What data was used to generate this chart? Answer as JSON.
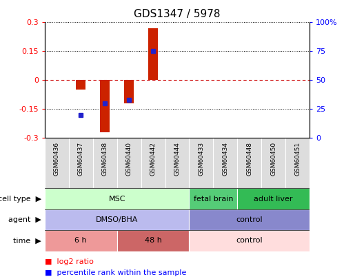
{
  "title": "GDS1347 / 5978",
  "samples": [
    "GSM60436",
    "GSM60437",
    "GSM60438",
    "GSM60440",
    "GSM60442",
    "GSM60444",
    "GSM60433",
    "GSM60434",
    "GSM60448",
    "GSM60450",
    "GSM60451"
  ],
  "log2_ratio": [
    0.0,
    -0.05,
    -0.27,
    -0.12,
    0.27,
    0.0,
    0.0,
    0.0,
    0.0,
    0.0,
    0.0
  ],
  "percentile_rank": [
    null,
    20,
    30,
    33,
    75,
    null,
    null,
    null,
    null,
    null,
    null
  ],
  "ylim": [
    -0.3,
    0.3
  ],
  "yticks_left": [
    -0.3,
    -0.15,
    0,
    0.15,
    0.3
  ],
  "yticks_right": [
    0,
    25,
    50,
    75,
    100
  ],
  "cell_type_groups": [
    {
      "label": "MSC",
      "start": 0,
      "end": 5,
      "color": "#ccffcc"
    },
    {
      "label": "fetal brain",
      "start": 6,
      "end": 7,
      "color": "#55cc77"
    },
    {
      "label": "adult liver",
      "start": 8,
      "end": 10,
      "color": "#33bb55"
    }
  ],
  "agent_groups": [
    {
      "label": "DMSO/BHA",
      "start": 0,
      "end": 5,
      "color": "#bbbbee"
    },
    {
      "label": "control",
      "start": 6,
      "end": 10,
      "color": "#8888cc"
    }
  ],
  "time_groups": [
    {
      "label": "6 h",
      "start": 0,
      "end": 2,
      "color": "#ee9999"
    },
    {
      "label": "48 h",
      "start": 3,
      "end": 5,
      "color": "#cc6666"
    },
    {
      "label": "control",
      "start": 6,
      "end": 10,
      "color": "#ffdddd"
    }
  ],
  "row_labels": [
    "cell type",
    "agent",
    "time"
  ],
  "bar_color": "#cc2200",
  "dot_color": "#2222cc",
  "zero_line_color": "#cc0000",
  "background_color": "#ffffff",
  "legend_red": "log2 ratio",
  "legend_blue": "percentile rank within the sample",
  "bar_width": 0.4
}
